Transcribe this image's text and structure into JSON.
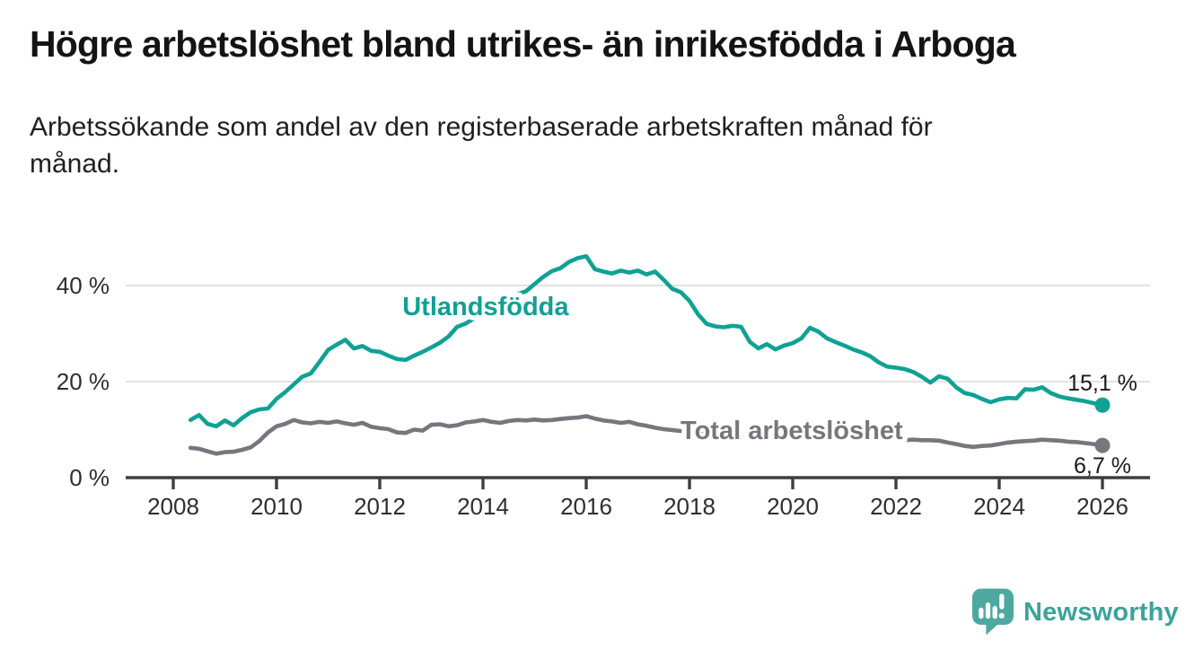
{
  "header": {
    "title": "Högre arbetslöshet bland utrikes- än inrikesfödda i Arboga",
    "subtitle": "Arbetssökande som andel av den registerbaserade arbetskraften månad för\nmånad."
  },
  "branding": {
    "logo_text": "Newsworthy",
    "mark_color": "#4da8a0",
    "text_color": "#3ba39b",
    "icon": "newsworthy-chart-speech-bubble"
  },
  "chart_data": {
    "type": "line",
    "x_start": 2008.3333,
    "x_step": 0.1666667,
    "x_ticks": [
      {
        "value": 2008,
        "label": "2008"
      },
      {
        "value": 2010,
        "label": "2010"
      },
      {
        "value": 2012,
        "label": "2012"
      },
      {
        "value": 2014,
        "label": "2014"
      },
      {
        "value": 2016,
        "label": "2016"
      },
      {
        "value": 2018,
        "label": "2018"
      },
      {
        "value": 2020,
        "label": "2020"
      },
      {
        "value": 2022,
        "label": "2022"
      },
      {
        "value": 2024,
        "label": "2024"
      },
      {
        "value": 2026,
        "label": "2026"
      }
    ],
    "y_ticks": [
      {
        "value": 0,
        "label": "0 %"
      },
      {
        "value": 20,
        "label": "20 %"
      },
      {
        "value": 40,
        "label": "40 %"
      }
    ],
    "ylim": [
      0,
      49
    ],
    "grid": "horizontal",
    "legend_position": "inline-labels",
    "series": [
      {
        "name": "Utlandsfödda",
        "slug": "utlandsfodda",
        "color": "#0fa194",
        "label_x": 2014.05,
        "label_y": 35.7,
        "end_label": "15,1 %",
        "end_label_side": "above",
        "end_value": 15.1,
        "values": [
          12.0,
          13.0,
          11.2,
          10.7,
          11.9,
          10.9,
          12.4,
          13.6,
          14.2,
          14.4,
          16.4,
          17.8,
          19.4,
          21.0,
          21.7,
          24.1,
          26.6,
          27.7,
          28.7,
          26.9,
          27.4,
          26.4,
          26.2,
          25.4,
          24.7,
          24.5,
          25.4,
          26.2,
          27.1,
          28.1,
          29.4,
          31.4,
          32.1,
          33.2,
          34.3,
          35.2,
          36.2,
          37.0,
          38.2,
          38.8,
          40.3,
          41.8,
          43.0,
          43.6,
          44.9,
          45.7,
          46.1,
          43.4,
          42.9,
          42.5,
          43.1,
          42.7,
          43.1,
          42.3,
          42.9,
          41.2,
          39.3,
          38.6,
          36.8,
          34.0,
          32.0,
          31.5,
          31.3,
          31.6,
          31.4,
          28.3,
          26.9,
          27.8,
          26.7,
          27.5,
          28.0,
          29.0,
          31.2,
          30.4,
          29.0,
          28.2,
          27.5,
          26.7,
          26.1,
          25.3,
          24.0,
          23.1,
          22.9,
          22.6,
          22.0,
          21.0,
          19.8,
          21.1,
          20.6,
          18.8,
          17.6,
          17.2,
          16.4,
          15.7,
          16.3,
          16.6,
          16.5,
          18.4,
          18.3,
          18.8,
          17.6,
          16.9,
          16.5,
          16.2,
          15.9,
          15.5,
          15.1
        ]
      },
      {
        "name": "Total arbetslöshet",
        "slug": "total-arbetsloshet",
        "color": "#76777d",
        "label_x": 2019.98,
        "label_y": 9.9,
        "end_label": "6,7 %",
        "end_label_side": "below",
        "end_value": 6.7,
        "values": [
          6.2,
          6.0,
          5.5,
          5.0,
          5.3,
          5.4,
          5.8,
          6.3,
          7.6,
          9.4,
          10.7,
          11.2,
          12.0,
          11.5,
          11.3,
          11.6,
          11.4,
          11.7,
          11.3,
          11.0,
          11.4,
          10.6,
          10.3,
          10.1,
          9.4,
          9.3,
          10.0,
          9.8,
          11.0,
          11.1,
          10.7,
          10.9,
          11.5,
          11.7,
          12.0,
          11.6,
          11.4,
          11.8,
          12.0,
          11.9,
          12.1,
          11.9,
          12.0,
          12.2,
          12.4,
          12.5,
          12.8,
          12.3,
          11.9,
          11.7,
          11.4,
          11.6,
          11.1,
          10.8,
          10.4,
          10.1,
          9.9,
          9.7,
          9.5,
          9.3,
          9.2,
          9.1,
          9.0,
          8.9,
          8.8,
          8.7,
          8.6,
          8.5,
          8.5,
          8.4,
          8.5,
          8.8,
          9.2,
          9.1,
          8.9,
          8.7,
          8.5,
          8.4,
          8.2,
          8.1,
          8.0,
          7.9,
          7.9,
          7.8,
          7.9,
          7.8,
          7.8,
          7.7,
          7.3,
          7.0,
          6.6,
          6.4,
          6.6,
          6.7,
          7.0,
          7.3,
          7.5,
          7.6,
          7.7,
          7.9,
          7.8,
          7.7,
          7.5,
          7.4,
          7.2,
          7.0,
          6.7
        ]
      }
    ]
  }
}
